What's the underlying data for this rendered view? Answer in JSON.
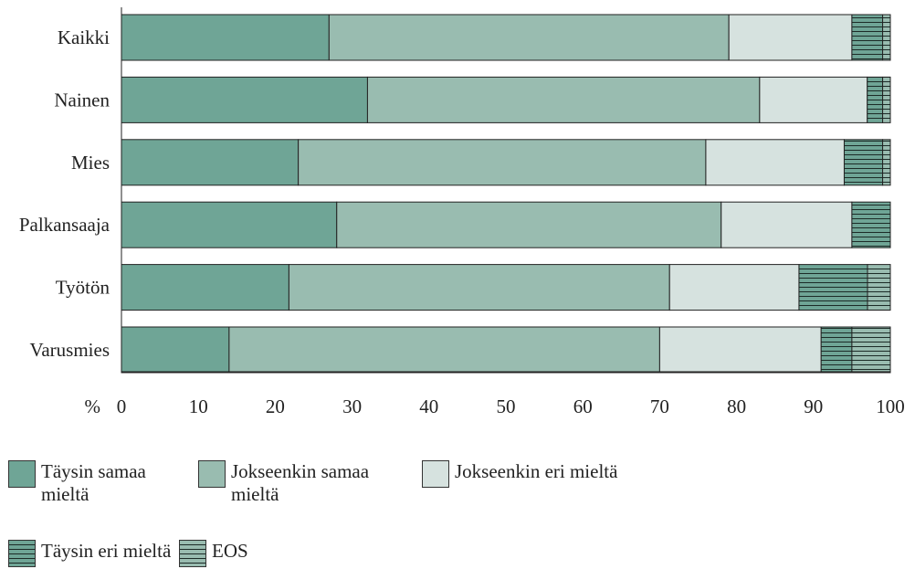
{
  "chart_data": {
    "type": "bar",
    "orientation": "horizontal",
    "stacked": true,
    "categories": [
      "Kaikki",
      "Nainen",
      "Mies",
      "Palkansaaja",
      "Työtön",
      "Varusmies"
    ],
    "series": [
      {
        "name": "Täysin samaa mieltä",
        "values": [
          27,
          32,
          23,
          28,
          22,
          14
        ],
        "color": "#6fa596",
        "pattern": "solid"
      },
      {
        "name": "Jokseenkin samaa mieltä",
        "values": [
          52,
          51,
          53,
          50,
          50,
          56
        ],
        "color": "#99bcb0",
        "pattern": "solid"
      },
      {
        "name": "Jokseenkin eri mieltä",
        "values": [
          16,
          14,
          18,
          17,
          17,
          21
        ],
        "color": "#d6e2df",
        "pattern": "solid"
      },
      {
        "name": "Täysin eri mieltä",
        "values": [
          4,
          2,
          5,
          5,
          9,
          4
        ],
        "color": "#6fa596",
        "pattern": "horizontal-lines"
      },
      {
        "name": "EOS",
        "values": [
          1,
          1,
          1,
          0,
          3,
          5
        ],
        "color": "#99bcb0",
        "pattern": "horizontal-lines"
      }
    ],
    "xaxis": {
      "label": "%",
      "ticks": [
        "0",
        "10",
        "20",
        "30",
        "40",
        "50",
        "60",
        "70",
        "80",
        "90",
        "100"
      ],
      "range": [
        0,
        100
      ]
    },
    "grid": false,
    "legend_position": "bottom"
  }
}
